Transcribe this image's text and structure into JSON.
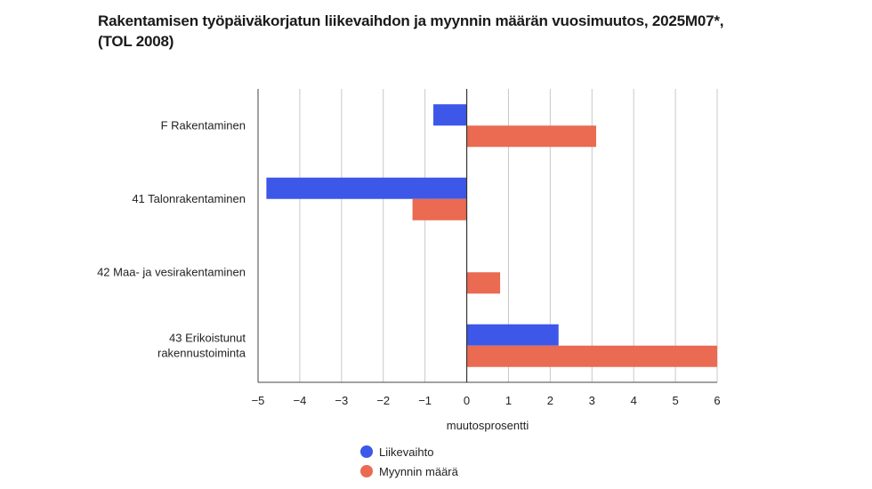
{
  "chart_data": {
    "type": "bar",
    "orientation": "horizontal",
    "title": "Rakentamisen työpäiväkorjatun liikevaihdon ja myynnin määrän vuosimuutos, 2025M07*, (TOL 2008)",
    "title_lines": [
      "Rakentamisen työpäiväkorjatun liikevaihdon ja myynnin määrän vuosimuutos, 2025M07*,",
      "(TOL 2008)"
    ],
    "categories": [
      "F Rakentaminen",
      "41 Talonrakentaminen",
      "42 Maa- ja vesirakentaminen",
      "43 Erikoistunut rakennustoiminta"
    ],
    "category_lines": [
      [
        "F Rakentaminen"
      ],
      [
        "41 Talonrakentaminen"
      ],
      [
        "42 Maa- ja vesirakentaminen"
      ],
      [
        "43 Erikoistunut",
        "rakennustoiminta"
      ]
    ],
    "series": [
      {
        "name": "Liikevaihto",
        "color": "#3d57e8",
        "values": [
          -0.8,
          -4.8,
          0.0,
          2.2
        ]
      },
      {
        "name": "Myynnin määrä",
        "color": "#ea6a52",
        "values": [
          3.1,
          -1.3,
          0.8,
          6.0
        ]
      }
    ],
    "xlabel": "muutosprosentti",
    "ylabel": "",
    "xlim": [
      -5,
      6
    ],
    "xticks": [
      -5,
      -4,
      -3,
      -2,
      -1,
      0,
      1,
      2,
      3,
      4,
      5,
      6
    ],
    "xtick_labels": [
      "−5",
      "−4",
      "−3",
      "−2",
      "−1",
      "0",
      "1",
      "2",
      "3",
      "4",
      "5",
      "6"
    ],
    "grid": "vertical",
    "legend_position": "bottom"
  }
}
